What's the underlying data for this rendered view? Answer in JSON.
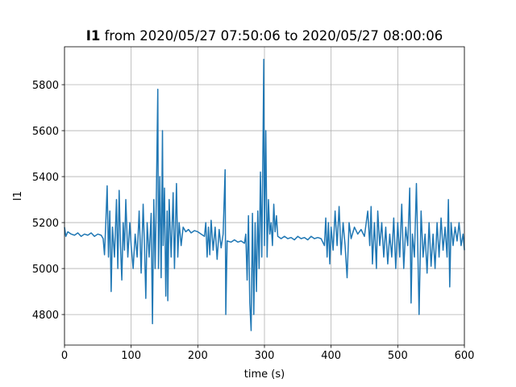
{
  "chart_data": {
    "type": "line",
    "title_bold": "I1",
    "title": "from 2020/05/27 07:50:06 to 2020/05/27 08:00:06",
    "xlabel": "time (s)",
    "ylabel": "I1",
    "xlim": [
      0,
      600
    ],
    "ylim": [
      4667,
      5965
    ],
    "xticks": [
      0,
      100,
      200,
      300,
      400,
      500,
      600
    ],
    "yticks": [
      4800,
      5000,
      5200,
      5400,
      5600,
      5800
    ],
    "grid": true,
    "x": [
      0,
      2,
      5,
      10,
      15,
      20,
      25,
      30,
      35,
      40,
      45,
      50,
      55,
      58,
      60,
      62,
      64,
      66,
      68,
      70,
      72,
      75,
      78,
      80,
      82,
      84,
      86,
      88,
      90,
      92,
      95,
      98,
      100,
      103,
      106,
      109,
      112,
      115,
      118,
      120,
      122,
      124,
      127,
      130,
      132,
      134,
      136,
      138,
      140,
      141,
      143,
      145,
      147,
      148,
      150,
      152,
      154,
      155,
      157,
      160,
      163,
      165,
      168,
      170,
      172,
      175,
      178,
      182,
      186,
      190,
      195,
      200,
      205,
      210,
      212,
      214,
      216,
      218,
      220,
      223,
      226,
      229,
      232,
      235,
      238,
      241,
      242,
      244,
      250,
      255,
      260,
      265,
      270,
      272,
      274,
      276,
      278,
      280,
      282,
      284,
      286,
      288,
      290,
      292,
      294,
      296,
      298,
      299,
      300,
      302,
      304,
      306,
      308,
      310,
      312,
      314,
      316,
      318,
      320,
      325,
      330,
      335,
      340,
      345,
      350,
      355,
      360,
      365,
      370,
      375,
      380,
      385,
      390,
      392,
      394,
      396,
      398,
      400,
      403,
      406,
      409,
      412,
      415,
      418,
      421,
      424,
      427,
      430,
      435,
      440,
      445,
      450,
      455,
      458,
      460,
      462,
      465,
      468,
      470,
      473,
      476,
      479,
      482,
      485,
      488,
      491,
      494,
      497,
      500,
      503,
      506,
      509,
      512,
      515,
      518,
      520,
      522,
      525,
      528,
      530,
      532,
      535,
      538,
      541,
      544,
      547,
      550,
      553,
      556,
      559,
      562,
      565,
      568,
      571,
      574,
      576,
      578,
      580,
      583,
      586,
      589,
      592,
      595,
      598,
      600
    ],
    "series": [
      {
        "name": "I1",
        "color": "#1f77b4",
        "values": [
          5180,
          5140,
          5160,
          5150,
          5145,
          5155,
          5140,
          5150,
          5145,
          5155,
          5140,
          5150,
          5145,
          5130,
          5060,
          5200,
          5360,
          5050,
          5250,
          4900,
          5180,
          5050,
          5300,
          5000,
          5340,
          5100,
          4950,
          5200,
          5080,
          5300,
          5050,
          5200,
          5100,
          5000,
          5150,
          5050,
          5250,
          4980,
          5280,
          5100,
          4870,
          5200,
          5050,
          5240,
          4760,
          5300,
          5000,
          5350,
          5780,
          5000,
          5400,
          4960,
          5600,
          5100,
          5350,
          4880,
          5250,
          4860,
          5300,
          5050,
          5330,
          5000,
          5370,
          5050,
          5200,
          5100,
          5180,
          5160,
          5170,
          5155,
          5165,
          5160,
          5150,
          5140,
          5200,
          5050,
          5180,
          5060,
          5210,
          5080,
          5180,
          5040,
          5170,
          5090,
          5150,
          5430,
          4800,
          5120,
          5115,
          5125,
          5115,
          5120,
          5110,
          5150,
          4950,
          5230,
          4850,
          4730,
          5240,
          4800,
          5200,
          4900,
          5250,
          5000,
          5420,
          5050,
          5600,
          5910,
          5100,
          5600,
          5050,
          5300,
          5150,
          5200,
          5100,
          5280,
          5160,
          5230,
          5140,
          5130,
          5140,
          5130,
          5135,
          5125,
          5140,
          5130,
          5135,
          5125,
          5140,
          5130,
          5135,
          5130,
          5100,
          5220,
          5050,
          5200,
          5020,
          5180,
          5080,
          5250,
          5100,
          5270,
          5060,
          5200,
          5100,
          4960,
          5200,
          5130,
          5180,
          5150,
          5170,
          5140,
          5250,
          5100,
          5270,
          5020,
          5200,
          5000,
          5250,
          5100,
          5200,
          5050,
          5180,
          5020,
          5150,
          5050,
          5220,
          5000,
          5200,
          5050,
          5280,
          5000,
          5180,
          5100,
          5350,
          4850,
          5150,
          5050,
          5370,
          5100,
          4800,
          5250,
          5050,
          5150,
          4980,
          5200,
          5010,
          5150,
          5000,
          5200,
          5050,
          5220,
          5080,
          5180,
          5050,
          5300,
          4920,
          5200,
          5100,
          5180,
          5120,
          5200,
          5100,
          5150,
          5080
        ]
      }
    ]
  }
}
